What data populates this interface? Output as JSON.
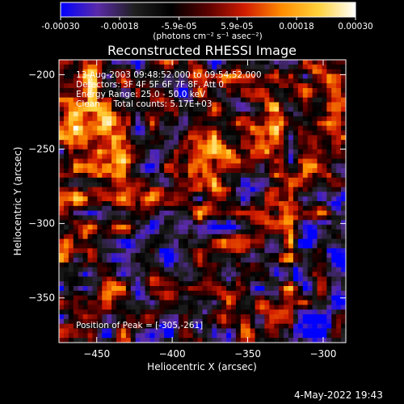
{
  "colorbar": {
    "ticks": [
      -0.0003,
      -0.00018,
      -5.9e-05,
      5.9e-05,
      0.00018,
      0.0003
    ],
    "tick_labels": [
      "-0.00030",
      "-0.00018",
      "-5.9e-05",
      "5.9e-05",
      "0.00018",
      "0.00030"
    ],
    "range": [
      -0.0003,
      0.0003
    ],
    "units_label": "(photons cm⁻² s⁻¹ asec⁻²)",
    "colors": [
      "#0000ff",
      "#5a2aa8",
      "#202020",
      "#000000",
      "#5a0000",
      "#d21c00",
      "#ff8c00",
      "#ffd23c",
      "#ffffff"
    ]
  },
  "chart_data": {
    "type": "heatmap",
    "title": "Reconstructed RHESSI Image",
    "xlabel": "Heliocentric X (arcsec)",
    "ylabel": "Heliocentric Y (arcsec)",
    "xlim": [
      -475,
      -285
    ],
    "ylim": [
      -380,
      -190
    ],
    "xticks": [
      -450,
      -400,
      -350,
      -300
    ],
    "yticks": [
      -200,
      -250,
      -300,
      -350
    ],
    "xtick_labels": [
      "−450",
      "−400",
      "−350",
      "−300"
    ],
    "ytick_labels": [
      "−200",
      "−250",
      "−300",
      "−350"
    ],
    "peak_position": [
      -305,
      -261
    ],
    "info": [
      "13-Aug-2003 09:48:52.000 to 09:54:52.000",
      "Detectors: 3F 4F 5F 6F 7F 8F, Att 0",
      "Energy Range: 25.0 - 50.0 keV",
      "Clean     Total counts: 5.17E+03"
    ],
    "peak_label": "Position of Peak = [-305,-261]"
  },
  "footer": {
    "timestamp": "4-May-2022 19:43"
  }
}
